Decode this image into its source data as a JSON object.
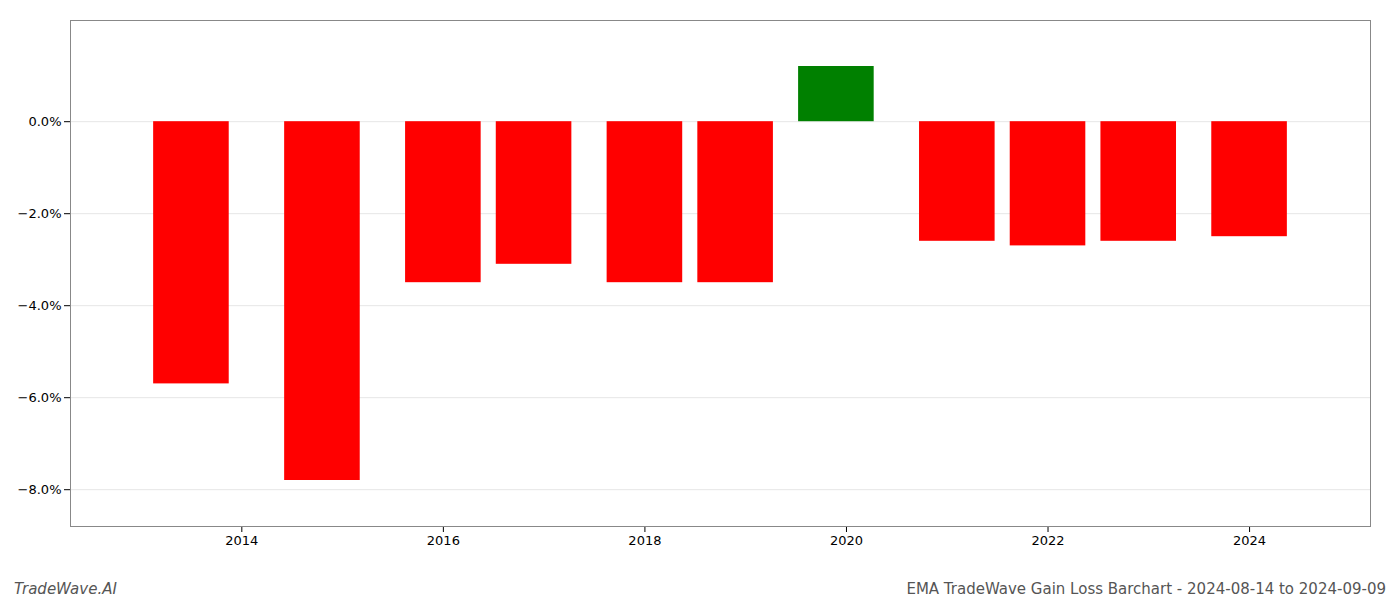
{
  "chart_data": {
    "type": "bar",
    "title": "EMA TradeWave Gain Loss Barchart - 2024-08-14 to 2024-09-09",
    "annotations": [
      "TradeWave.AI"
    ],
    "x": [
      2013.5,
      2014.8,
      2016.0,
      2016.9,
      2018.0,
      2018.9,
      2019.9,
      2021.1,
      2022.0,
      2022.9,
      2024.0
    ],
    "values": [
      -5.7,
      -7.8,
      -3.5,
      -3.1,
      -3.5,
      -3.5,
      1.2,
      -2.6,
      -2.7,
      -2.6,
      -2.5
    ],
    "colors": [
      "#ff0000",
      "#ff0000",
      "#ff0000",
      "#ff0000",
      "#ff0000",
      "#ff0000",
      "#008000",
      "#ff0000",
      "#ff0000",
      "#ff0000",
      "#ff0000"
    ],
    "xlim": [
      2012.3,
      2025.2
    ],
    "xticks": [
      2014,
      2016,
      2018,
      2020,
      2022,
      2024
    ],
    "ylim": [
      -8.8,
      2.2
    ],
    "yticks": [
      {
        "value": -8.0,
        "label": "−8.0%"
      },
      {
        "value": -6.0,
        "label": "−6.0%"
      },
      {
        "value": -4.0,
        "label": "−4.0%"
      },
      {
        "value": -2.0,
        "label": "−2.0%"
      },
      {
        "value": 0.0,
        "label": "0.0%"
      }
    ],
    "grid": true
  }
}
